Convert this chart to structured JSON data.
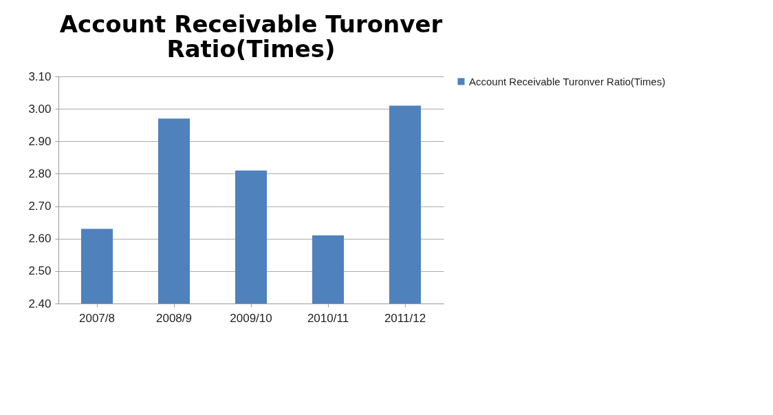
{
  "chart_data": {
    "type": "bar",
    "title": "Account Receivable Turonver Ratio(Times)",
    "categories": [
      "2007/8",
      "2008/9",
      "2009/10",
      "2010/11",
      "2011/12"
    ],
    "series": [
      {
        "name": "Account Receivable Turonver Ratio(Times)",
        "color": "#4f81bd",
        "values": [
          2.63,
          2.97,
          2.81,
          2.61,
          3.01
        ]
      }
    ],
    "ylim": [
      2.4,
      3.1
    ],
    "yticks": [
      {
        "value": 2.4,
        "label": "2.40"
      },
      {
        "value": 2.5,
        "label": "2.50"
      },
      {
        "value": 2.6,
        "label": "2.60"
      },
      {
        "value": 2.7,
        "label": "2.70"
      },
      {
        "value": 2.8,
        "label": "2.80"
      },
      {
        "value": 2.9,
        "label": "2.90"
      },
      {
        "value": 3.0,
        "label": "3.00"
      },
      {
        "value": 3.1,
        "label": "3.10"
      }
    ],
    "grid": true,
    "legend": "right"
  }
}
